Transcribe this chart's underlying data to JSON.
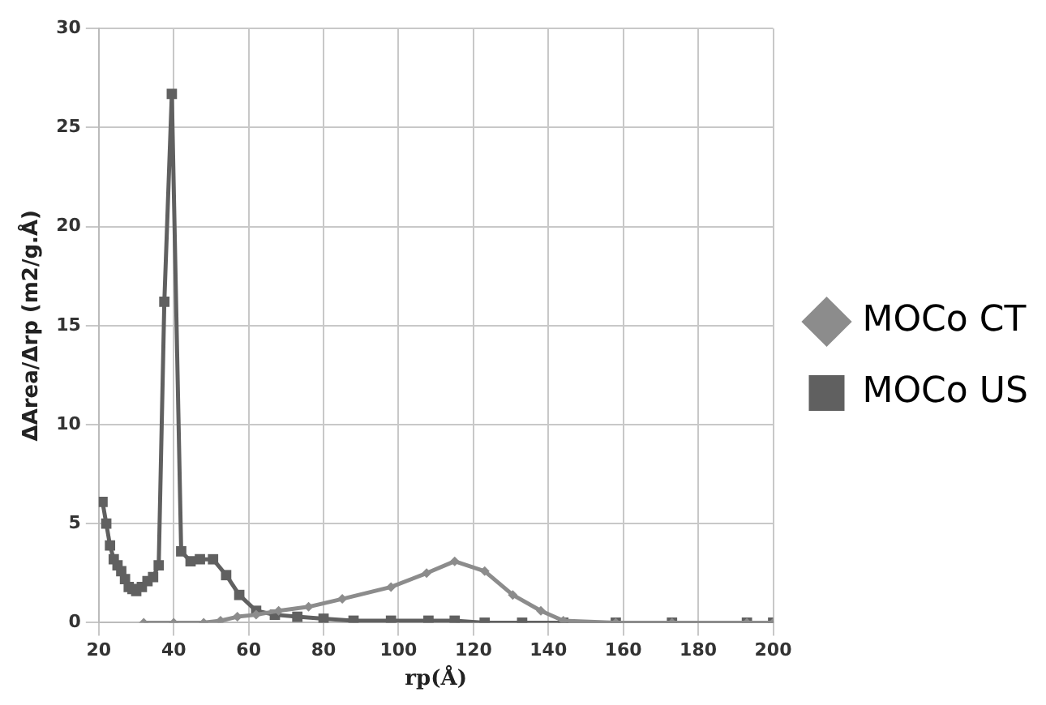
{
  "chart_data": {
    "type": "line",
    "xlabel": "rp(Å)",
    "ylabel": "ΔArea/Δrp (m2/g.Å)",
    "xlim": [
      20,
      200
    ],
    "ylim": [
      0,
      30
    ],
    "xticks": [
      20,
      40,
      60,
      80,
      100,
      120,
      140,
      160,
      180,
      200
    ],
    "yticks": [
      0,
      5,
      10,
      15,
      20,
      25,
      30
    ],
    "grid": true,
    "legend": "right",
    "series": [
      {
        "name": "MOCo CT",
        "color": "#8c8c8c",
        "marker": "diamond",
        "x": [
          32,
          40,
          48,
          52.5,
          57,
          62,
          68,
          76,
          85,
          98,
          107.5,
          115,
          123,
          130.5,
          138,
          144,
          158,
          173,
          193,
          200
        ],
        "values": [
          0,
          0,
          0,
          0.1,
          0.3,
          0.4,
          0.6,
          0.8,
          1.2,
          1.8,
          2.5,
          3.1,
          2.6,
          1.4,
          0.6,
          0.1,
          0,
          0,
          0,
          0
        ]
      },
      {
        "name": "MOCo US",
        "color": "#606060",
        "marker": "square",
        "x": [
          21,
          22,
          23,
          24,
          25,
          26,
          27,
          28,
          29,
          30,
          31.5,
          33,
          34.5,
          36,
          37.5,
          39.5,
          42,
          44.5,
          47,
          50.5,
          54,
          57.5,
          62,
          67,
          73,
          80,
          88,
          98,
          108,
          115,
          123,
          133,
          144,
          158,
          173,
          193,
          200
        ],
        "values": [
          6.1,
          5,
          3.9,
          3.2,
          2.9,
          2.6,
          2.2,
          1.8,
          1.7,
          1.6,
          1.8,
          2.1,
          2.3,
          2.9,
          16.2,
          26.7,
          3.6,
          3.1,
          3.2,
          3.2,
          2.4,
          1.4,
          0.6,
          0.4,
          0.3,
          0.2,
          0.1,
          0.1,
          0.1,
          0.1,
          0,
          0,
          0,
          0,
          0,
          0,
          0
        ]
      }
    ]
  }
}
